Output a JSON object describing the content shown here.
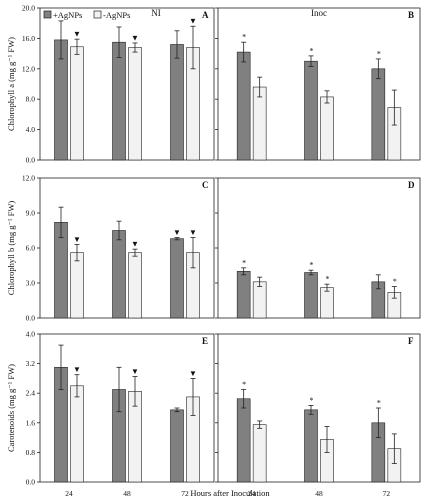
{
  "chart_data": {
    "type": "bar",
    "legend": {
      "entries": [
        {
          "name": "+AgNPs",
          "color": "#808080"
        },
        {
          "name": "-AgNPs",
          "color": "#f2f2f2"
        }
      ],
      "placement": "top-left"
    },
    "column_titles": [
      "NI",
      "Inoc"
    ],
    "xlabel": "Hours after Inoculation",
    "categories": [
      "24",
      "48",
      "72"
    ],
    "rows": [
      {
        "ylabel": "Chlorophyll a (mg g⁻¹ FW)",
        "ylim": [
          0,
          20
        ],
        "yticks": [
          "0.0",
          "4.0",
          "8.0",
          "12.0",
          "16.0",
          "20.0"
        ],
        "panels": [
          {
            "label": "A",
            "series": [
              {
                "name": "+AgNPs",
                "values": [
                  15.8,
                  15.5,
                  15.2
                ],
                "errors": [
                  2.5,
                  2.0,
                  1.8
                ],
                "marks": [
                  "",
                  "",
                  ""
                ]
              },
              {
                "name": "-AgNPs",
                "values": [
                  14.9,
                  14.8,
                  14.8
                ],
                "errors": [
                  1.0,
                  0.6,
                  2.8
                ],
                "marks": [
                  "▼",
                  "▼",
                  "▼"
                ]
              }
            ]
          },
          {
            "label": "B",
            "series": [
              {
                "name": "+AgNPs",
                "values": [
                  14.2,
                  13.0,
                  12.0
                ],
                "errors": [
                  1.3,
                  0.7,
                  1.3
                ],
                "marks": [
                  "*",
                  "*",
                  "*"
                ]
              },
              {
                "name": "-AgNPs",
                "values": [
                  9.6,
                  8.3,
                  6.9
                ],
                "errors": [
                  1.3,
                  0.8,
                  2.3
                ],
                "marks": [
                  "",
                  "",
                  ""
                ]
              }
            ]
          }
        ]
      },
      {
        "ylabel": "Chlorophyll b (mg g⁻¹ FW)",
        "ylim": [
          0,
          12
        ],
        "yticks": [
          "0.0",
          "3.0",
          "6.0",
          "9.0",
          "12.0"
        ],
        "panels": [
          {
            "label": "C",
            "series": [
              {
                "name": "+AgNPs",
                "values": [
                  8.2,
                  7.5,
                  6.8
                ],
                "errors": [
                  1.3,
                  0.8,
                  0.1
                ],
                "marks": [
                  "",
                  "",
                  "▼"
                ]
              },
              {
                "name": "-AgNPs",
                "values": [
                  5.6,
                  5.6,
                  5.6
                ],
                "errors": [
                  0.7,
                  0.3,
                  1.3
                ],
                "marks": [
                  "▼",
                  "▼",
                  "▼"
                ]
              }
            ]
          },
          {
            "label": "D",
            "series": [
              {
                "name": "+AgNPs",
                "values": [
                  4.0,
                  3.9,
                  3.1
                ],
                "errors": [
                  0.3,
                  0.2,
                  0.6
                ],
                "marks": [
                  "*",
                  "*",
                  ""
                ]
              },
              {
                "name": "-AgNPs",
                "values": [
                  3.1,
                  2.6,
                  2.2
                ],
                "errors": [
                  0.4,
                  0.3,
                  0.5
                ],
                "marks": [
                  "",
                  "*",
                  "*"
                ]
              }
            ]
          }
        ]
      },
      {
        "ylabel": "Carotenoids  (mg g⁻¹ FW)",
        "ylim": [
          0,
          4
        ],
        "yticks": [
          "0.0",
          "0.8",
          "1.6",
          "2.4",
          "3.2",
          "4.0"
        ],
        "panels": [
          {
            "label": "E",
            "series": [
              {
                "name": "+AgNPs",
                "values": [
                  3.1,
                  2.5,
                  1.95
                ],
                "errors": [
                  0.6,
                  0.6,
                  0.05
                ],
                "marks": [
                  "",
                  "",
                  ""
                ]
              },
              {
                "name": "-AgNPs",
                "values": [
                  2.6,
                  2.45,
                  2.3
                ],
                "errors": [
                  0.3,
                  0.4,
                  0.5
                ],
                "marks": [
                  "▼",
                  "▼",
                  "▼"
                ]
              }
            ]
          },
          {
            "label": "F",
            "series": [
              {
                "name": "+AgNPs",
                "values": [
                  2.25,
                  1.95,
                  1.6
                ],
                "errors": [
                  0.25,
                  0.12,
                  0.4
                ],
                "marks": [
                  "*",
                  "*",
                  "*"
                ]
              },
              {
                "name": "-AgNPs",
                "values": [
                  1.55,
                  1.15,
                  0.9
                ],
                "errors": [
                  0.1,
                  0.35,
                  0.4
                ],
                "marks": [
                  "",
                  "",
                  ""
                ]
              }
            ]
          }
        ]
      }
    ]
  }
}
